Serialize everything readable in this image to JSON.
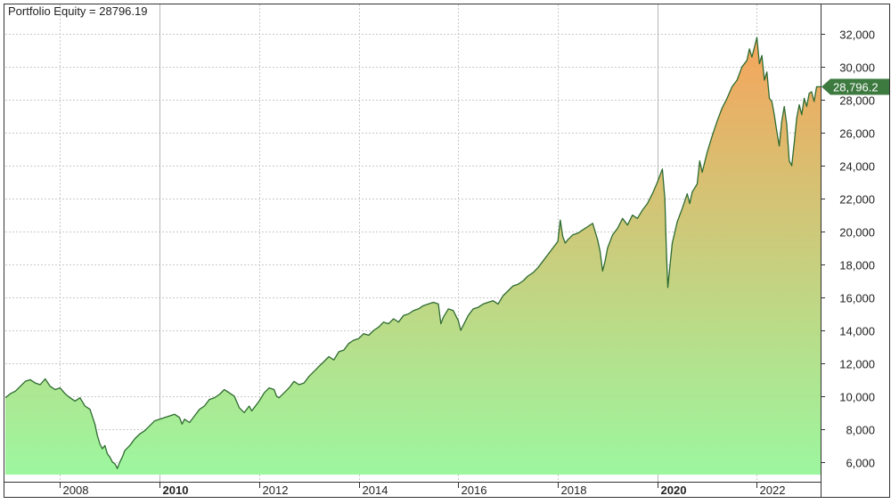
{
  "chart_data": {
    "type": "area",
    "title": "Portfolio Equity = 28796.19",
    "series": [
      {
        "name": "Portfolio Equity",
        "color": "#2e6b30"
      }
    ],
    "x_ticks": [
      {
        "label": "2008",
        "year": 2008,
        "bold": false
      },
      {
        "label": "2010",
        "year": 2010,
        "bold": true
      },
      {
        "label": "2012",
        "year": 2012,
        "bold": false
      },
      {
        "label": "2014",
        "year": 2014,
        "bold": false
      },
      {
        "label": "2016",
        "year": 2016,
        "bold": false
      },
      {
        "label": "2018",
        "year": 2018,
        "bold": false
      },
      {
        "label": "2020",
        "year": 2020,
        "bold": true
      },
      {
        "label": "2022",
        "year": 2022,
        "bold": false
      }
    ],
    "y_ticks": [
      "32,000",
      "30,000",
      "28,000",
      "26,000",
      "24,000",
      "22,000",
      "20,000",
      "18,000",
      "16,000",
      "14,000",
      "12,000",
      "10,000",
      "8,000",
      "6,000"
    ],
    "y_tick_values": [
      32000,
      30000,
      28000,
      26000,
      24000,
      22000,
      20000,
      18000,
      16000,
      14000,
      12000,
      10000,
      8000,
      6000
    ],
    "ylim": [
      4800,
      33800
    ],
    "xlim": [
      2006.9,
      2023.28
    ],
    "last_value_label": "28,796.2",
    "last_value": 28796.19,
    "grid": true,
    "fill_gradient": {
      "low": "#9cf79f",
      "high": "#f5a55c"
    },
    "line_color": "#2e6b30",
    "points": [
      [
        2006.9,
        9900
      ],
      [
        2007.0,
        10150
      ],
      [
        2007.1,
        10300
      ],
      [
        2007.2,
        10600
      ],
      [
        2007.3,
        10900
      ],
      [
        2007.4,
        11000
      ],
      [
        2007.5,
        10800
      ],
      [
        2007.6,
        10700
      ],
      [
        2007.7,
        11050
      ],
      [
        2007.8,
        10600
      ],
      [
        2007.9,
        10400
      ],
      [
        2008.0,
        10500
      ],
      [
        2008.1,
        10150
      ],
      [
        2008.2,
        9900
      ],
      [
        2008.3,
        9700
      ],
      [
        2008.4,
        9900
      ],
      [
        2008.5,
        9400
      ],
      [
        2008.6,
        9200
      ],
      [
        2008.7,
        8300
      ],
      [
        2008.75,
        7600
      ],
      [
        2008.8,
        7100
      ],
      [
        2008.85,
        6800
      ],
      [
        2008.9,
        7000
      ],
      [
        2008.95,
        6500
      ],
      [
        2009.0,
        6300
      ],
      [
        2009.05,
        6000
      ],
      [
        2009.1,
        5900
      ],
      [
        2009.15,
        5600
      ],
      [
        2009.2,
        6000
      ],
      [
        2009.25,
        6300
      ],
      [
        2009.3,
        6700
      ],
      [
        2009.4,
        7000
      ],
      [
        2009.5,
        7400
      ],
      [
        2009.6,
        7700
      ],
      [
        2009.7,
        7900
      ],
      [
        2009.8,
        8200
      ],
      [
        2009.9,
        8500
      ],
      [
        2010.0,
        8600
      ],
      [
        2010.1,
        8700
      ],
      [
        2010.2,
        8800
      ],
      [
        2010.3,
        8900
      ],
      [
        2010.4,
        8700
      ],
      [
        2010.45,
        8300
      ],
      [
        2010.5,
        8600
      ],
      [
        2010.6,
        8400
      ],
      [
        2010.7,
        8800
      ],
      [
        2010.8,
        9200
      ],
      [
        2010.9,
        9400
      ],
      [
        2011.0,
        9800
      ],
      [
        2011.1,
        9900
      ],
      [
        2011.2,
        10100
      ],
      [
        2011.3,
        10400
      ],
      [
        2011.4,
        10200
      ],
      [
        2011.5,
        10000
      ],
      [
        2011.6,
        9300
      ],
      [
        2011.7,
        9000
      ],
      [
        2011.8,
        9400
      ],
      [
        2011.85,
        9100
      ],
      [
        2011.9,
        9300
      ],
      [
        2012.0,
        9700
      ],
      [
        2012.1,
        10200
      ],
      [
        2012.2,
        10500
      ],
      [
        2012.3,
        10400
      ],
      [
        2012.35,
        10000
      ],
      [
        2012.4,
        9900
      ],
      [
        2012.5,
        10200
      ],
      [
        2012.6,
        10500
      ],
      [
        2012.7,
        10900
      ],
      [
        2012.8,
        10700
      ],
      [
        2012.9,
        10800
      ],
      [
        2013.0,
        11200
      ],
      [
        2013.1,
        11500
      ],
      [
        2013.2,
        11800
      ],
      [
        2013.3,
        12100
      ],
      [
        2013.4,
        12400
      ],
      [
        2013.5,
        12200
      ],
      [
        2013.6,
        12700
      ],
      [
        2013.7,
        12800
      ],
      [
        2013.8,
        13200
      ],
      [
        2013.9,
        13400
      ],
      [
        2014.0,
        13500
      ],
      [
        2014.1,
        13800
      ],
      [
        2014.2,
        13700
      ],
      [
        2014.3,
        14000
      ],
      [
        2014.4,
        14200
      ],
      [
        2014.5,
        14500
      ],
      [
        2014.6,
        14400
      ],
      [
        2014.7,
        14700
      ],
      [
        2014.8,
        14500
      ],
      [
        2014.9,
        14900
      ],
      [
        2015.0,
        15000
      ],
      [
        2015.1,
        15200
      ],
      [
        2015.2,
        15300
      ],
      [
        2015.3,
        15500
      ],
      [
        2015.4,
        15600
      ],
      [
        2015.5,
        15700
      ],
      [
        2015.6,
        15600
      ],
      [
        2015.65,
        14400
      ],
      [
        2015.7,
        14800
      ],
      [
        2015.8,
        15300
      ],
      [
        2015.9,
        15200
      ],
      [
        2016.0,
        14600
      ],
      [
        2016.05,
        14000
      ],
      [
        2016.1,
        14300
      ],
      [
        2016.2,
        14900
      ],
      [
        2016.3,
        15300
      ],
      [
        2016.4,
        15400
      ],
      [
        2016.5,
        15600
      ],
      [
        2016.6,
        15700
      ],
      [
        2016.7,
        15800
      ],
      [
        2016.8,
        15600
      ],
      [
        2016.9,
        16100
      ],
      [
        2017.0,
        16400
      ],
      [
        2017.1,
        16700
      ],
      [
        2017.2,
        16800
      ],
      [
        2017.3,
        17000
      ],
      [
        2017.4,
        17300
      ],
      [
        2017.5,
        17500
      ],
      [
        2017.6,
        17800
      ],
      [
        2017.7,
        18200
      ],
      [
        2017.8,
        18600
      ],
      [
        2017.9,
        19000
      ],
      [
        2018.0,
        19400
      ],
      [
        2018.05,
        20700
      ],
      [
        2018.1,
        19700
      ],
      [
        2018.15,
        19300
      ],
      [
        2018.2,
        19500
      ],
      [
        2018.3,
        19800
      ],
      [
        2018.4,
        19900
      ],
      [
        2018.5,
        20100
      ],
      [
        2018.6,
        20300
      ],
      [
        2018.7,
        20500
      ],
      [
        2018.8,
        19500
      ],
      [
        2018.85,
        18800
      ],
      [
        2018.9,
        17600
      ],
      [
        2018.95,
        18200
      ],
      [
        2019.0,
        19000
      ],
      [
        2019.1,
        19800
      ],
      [
        2019.2,
        20200
      ],
      [
        2019.3,
        20800
      ],
      [
        2019.4,
        20400
      ],
      [
        2019.5,
        21000
      ],
      [
        2019.6,
        20800
      ],
      [
        2019.7,
        21300
      ],
      [
        2019.8,
        21700
      ],
      [
        2019.9,
        22300
      ],
      [
        2020.0,
        23000
      ],
      [
        2020.05,
        23400
      ],
      [
        2020.1,
        23800
      ],
      [
        2020.15,
        22000
      ],
      [
        2020.18,
        19000
      ],
      [
        2020.21,
        16600
      ],
      [
        2020.25,
        17800
      ],
      [
        2020.3,
        19300
      ],
      [
        2020.4,
        20600
      ],
      [
        2020.5,
        21400
      ],
      [
        2020.6,
        22300
      ],
      [
        2020.65,
        21700
      ],
      [
        2020.7,
        22400
      ],
      [
        2020.8,
        22900
      ],
      [
        2020.85,
        24300
      ],
      [
        2020.9,
        23600
      ],
      [
        2021.0,
        24800
      ],
      [
        2021.1,
        25800
      ],
      [
        2021.2,
        26700
      ],
      [
        2021.3,
        27500
      ],
      [
        2021.4,
        28100
      ],
      [
        2021.5,
        28800
      ],
      [
        2021.6,
        29200
      ],
      [
        2021.7,
        30000
      ],
      [
        2021.8,
        30400
      ],
      [
        2021.85,
        31100
      ],
      [
        2021.9,
        30600
      ],
      [
        2022.0,
        31800
      ],
      [
        2022.05,
        30200
      ],
      [
        2022.1,
        30700
      ],
      [
        2022.15,
        29200
      ],
      [
        2022.2,
        29700
      ],
      [
        2022.25,
        28100
      ],
      [
        2022.3,
        27900
      ],
      [
        2022.35,
        27100
      ],
      [
        2022.4,
        26100
      ],
      [
        2022.45,
        25200
      ],
      [
        2022.5,
        26700
      ],
      [
        2022.55,
        27600
      ],
      [
        2022.6,
        26500
      ],
      [
        2022.65,
        24300
      ],
      [
        2022.7,
        24000
      ],
      [
        2022.75,
        25400
      ],
      [
        2022.8,
        26900
      ],
      [
        2022.85,
        27700
      ],
      [
        2022.9,
        27100
      ],
      [
        2022.95,
        28100
      ],
      [
        2023.0,
        27600
      ],
      [
        2023.05,
        28400
      ],
      [
        2023.1,
        28500
      ],
      [
        2023.15,
        27900
      ],
      [
        2023.2,
        28800
      ],
      [
        2023.28,
        28796
      ]
    ]
  }
}
